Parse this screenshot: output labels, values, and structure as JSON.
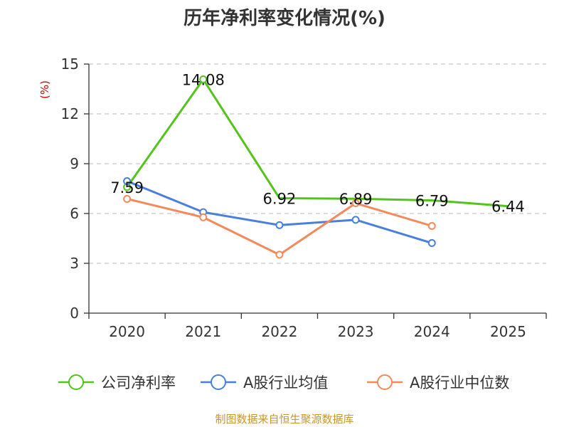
{
  "chart_data": {
    "type": "line",
    "title": "历年净利率变化情况(%)",
    "ylabel": "(%)",
    "xlabel": "",
    "categories": [
      "2020",
      "2021",
      "2022",
      "2023",
      "2024",
      "2025"
    ],
    "ylim": [
      0,
      15
    ],
    "yticks": [
      0,
      3,
      6,
      9,
      12,
      15
    ],
    "grid": true,
    "grid_style": "dashed",
    "legend_position": "bottom",
    "series": [
      {
        "name": "公司净利率",
        "color": "#52c41a",
        "values": [
          7.59,
          14.08,
          6.92,
          6.89,
          6.79,
          6.44
        ],
        "labels": [
          "7.59",
          "14.08",
          "6.92",
          "6.89",
          "6.79",
          "6.44"
        ],
        "show_labels": true,
        "markers": [
          true,
          true,
          false,
          false,
          false,
          false
        ]
      },
      {
        "name": "A股行业均值",
        "color": "#4a7fdc",
        "values": [
          7.95,
          6.08,
          5.3,
          5.62,
          4.22,
          null
        ],
        "show_labels": false,
        "markers": [
          true,
          true,
          true,
          true,
          true,
          false
        ]
      },
      {
        "name": "A股行业中位数",
        "color": "#f4895a",
        "values": [
          6.88,
          5.77,
          3.52,
          6.62,
          5.25,
          null
        ],
        "show_labels": false,
        "markers": [
          true,
          true,
          true,
          true,
          true,
          false
        ]
      }
    ],
    "source": "制图数据来自恒生聚源数据库"
  }
}
